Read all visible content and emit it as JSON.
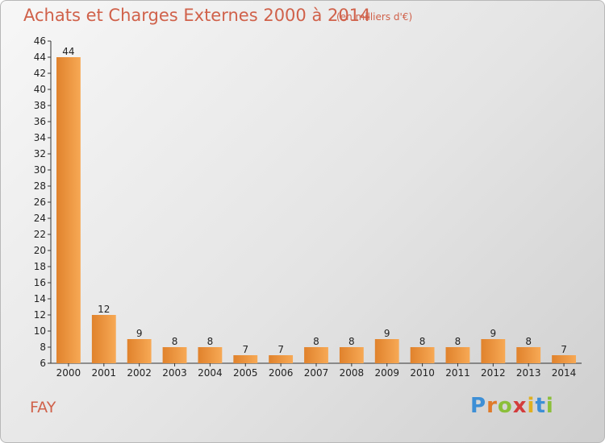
{
  "header": {
    "title": "Achats et Charges Externes 2000 à 2014",
    "unit": "(en milliers d'€)"
  },
  "footer": {
    "commune": "FAY",
    "logo_text": "Proxiti"
  },
  "colors": {
    "bar_light": "#f7a955",
    "bar_dark": "#e0822c",
    "text_accent": "#d0614a"
  },
  "chart_data": {
    "type": "bar",
    "title": "Achats et Charges Externes 2000 à 2014",
    "subtitle": "(en milliers d'€)",
    "xlabel": "",
    "ylabel": "",
    "categories": [
      "2000",
      "2001",
      "2002",
      "2003",
      "2004",
      "2005",
      "2006",
      "2007",
      "2008",
      "2009",
      "2010",
      "2011",
      "2012",
      "2013",
      "2014"
    ],
    "values": [
      44,
      12,
      9,
      8,
      8,
      7,
      7,
      8,
      8,
      9,
      8,
      8,
      9,
      8,
      7
    ],
    "ylim": [
      6,
      46
    ],
    "yticks": [
      6,
      8,
      10,
      12,
      14,
      16,
      18,
      20,
      22,
      24,
      26,
      28,
      30,
      32,
      34,
      36,
      38,
      40,
      42,
      44,
      46
    ],
    "grid": false,
    "legend": "none"
  }
}
